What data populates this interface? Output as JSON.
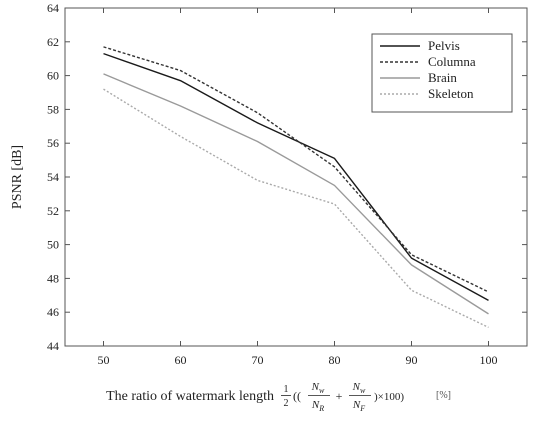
{
  "chart_data": {
    "type": "line",
    "title": "",
    "xlabel": "The ratio of watermark length",
    "xlabel_formula": {
      "half_num": "1",
      "half_den": "2",
      "open": "((",
      "frac1_num": "N",
      "frac1_num_sub": "w",
      "frac1_den": "N",
      "frac1_den_sub": "R",
      "plus": "+",
      "frac2_num": "N",
      "frac2_num_sub": "w",
      "frac2_den": "N",
      "frac2_den_sub": "F",
      "close": ")×100)",
      "unit": "[%]"
    },
    "ylabel": "PSNR [dB]",
    "x": [
      50,
      60,
      70,
      80,
      90,
      100
    ],
    "xlim": [
      45,
      105
    ],
    "ylim": [
      44,
      64
    ],
    "x_ticks": [
      50,
      60,
      70,
      80,
      90,
      100
    ],
    "y_ticks": [
      44,
      46,
      48,
      50,
      52,
      54,
      56,
      58,
      60,
      62,
      64
    ],
    "grid": false,
    "legend_position": "top-right",
    "series": [
      {
        "name": "Pelvis",
        "values": [
          61.3,
          59.7,
          57.2,
          55.1,
          49.2,
          46.7
        ],
        "color": "#1a1a1a",
        "dash": ""
      },
      {
        "name": "Columna",
        "values": [
          61.7,
          60.3,
          57.8,
          54.6,
          49.4,
          47.2
        ],
        "color": "#333333",
        "dash": "3,2"
      },
      {
        "name": "Brain",
        "values": [
          60.1,
          58.2,
          56.1,
          53.5,
          48.8,
          45.9
        ],
        "color": "#9a9a9a",
        "dash": ""
      },
      {
        "name": "Skeleton",
        "values": [
          59.2,
          56.4,
          53.8,
          52.4,
          47.3,
          45.1
        ],
        "color": "#aaaaaa",
        "dash": "2,2"
      }
    ]
  }
}
